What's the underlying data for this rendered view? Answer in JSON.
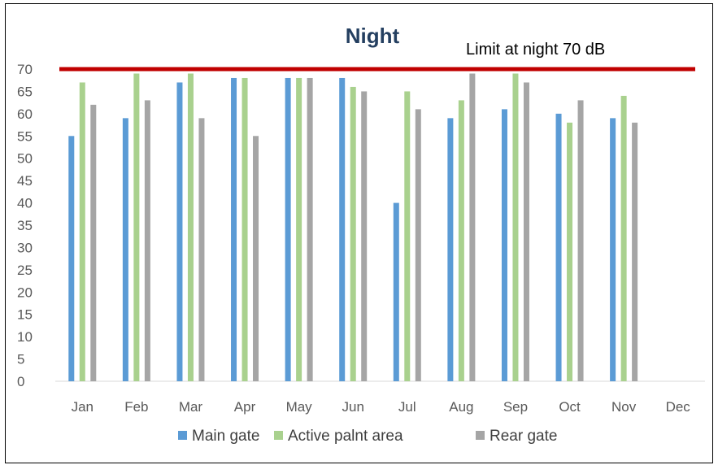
{
  "chart_data": {
    "type": "bar",
    "title": "Night",
    "annotation": "Limit at night 70 dB",
    "limit": 70,
    "limit_color": "#c00000",
    "categories": [
      "Jan",
      "Feb",
      "Mar",
      "Apr",
      "May",
      "Jun",
      "Jul",
      "Aug",
      "Sep",
      "Oct",
      "Nov",
      "Dec"
    ],
    "ylim": [
      0,
      70
    ],
    "yticks": [
      0,
      5,
      10,
      15,
      20,
      25,
      30,
      35,
      40,
      45,
      50,
      55,
      60,
      65,
      70
    ],
    "grid": false,
    "legend_position": "bottom",
    "series": [
      {
        "name": "Main gate",
        "color": "#5b9bd5",
        "values": [
          55,
          59,
          67,
          68,
          68,
          68,
          40,
          59,
          61,
          60,
          59,
          null
        ]
      },
      {
        "name": "Active palnt area",
        "color": "#a9d18e",
        "values": [
          67,
          69,
          69,
          68,
          68,
          66,
          65,
          63,
          69,
          58,
          64,
          null
        ]
      },
      {
        "name": "Rear gate",
        "color": "#a5a5a5",
        "values": [
          62,
          63,
          59,
          55,
          68,
          65,
          61,
          69,
          67,
          63,
          58,
          null
        ]
      }
    ]
  }
}
